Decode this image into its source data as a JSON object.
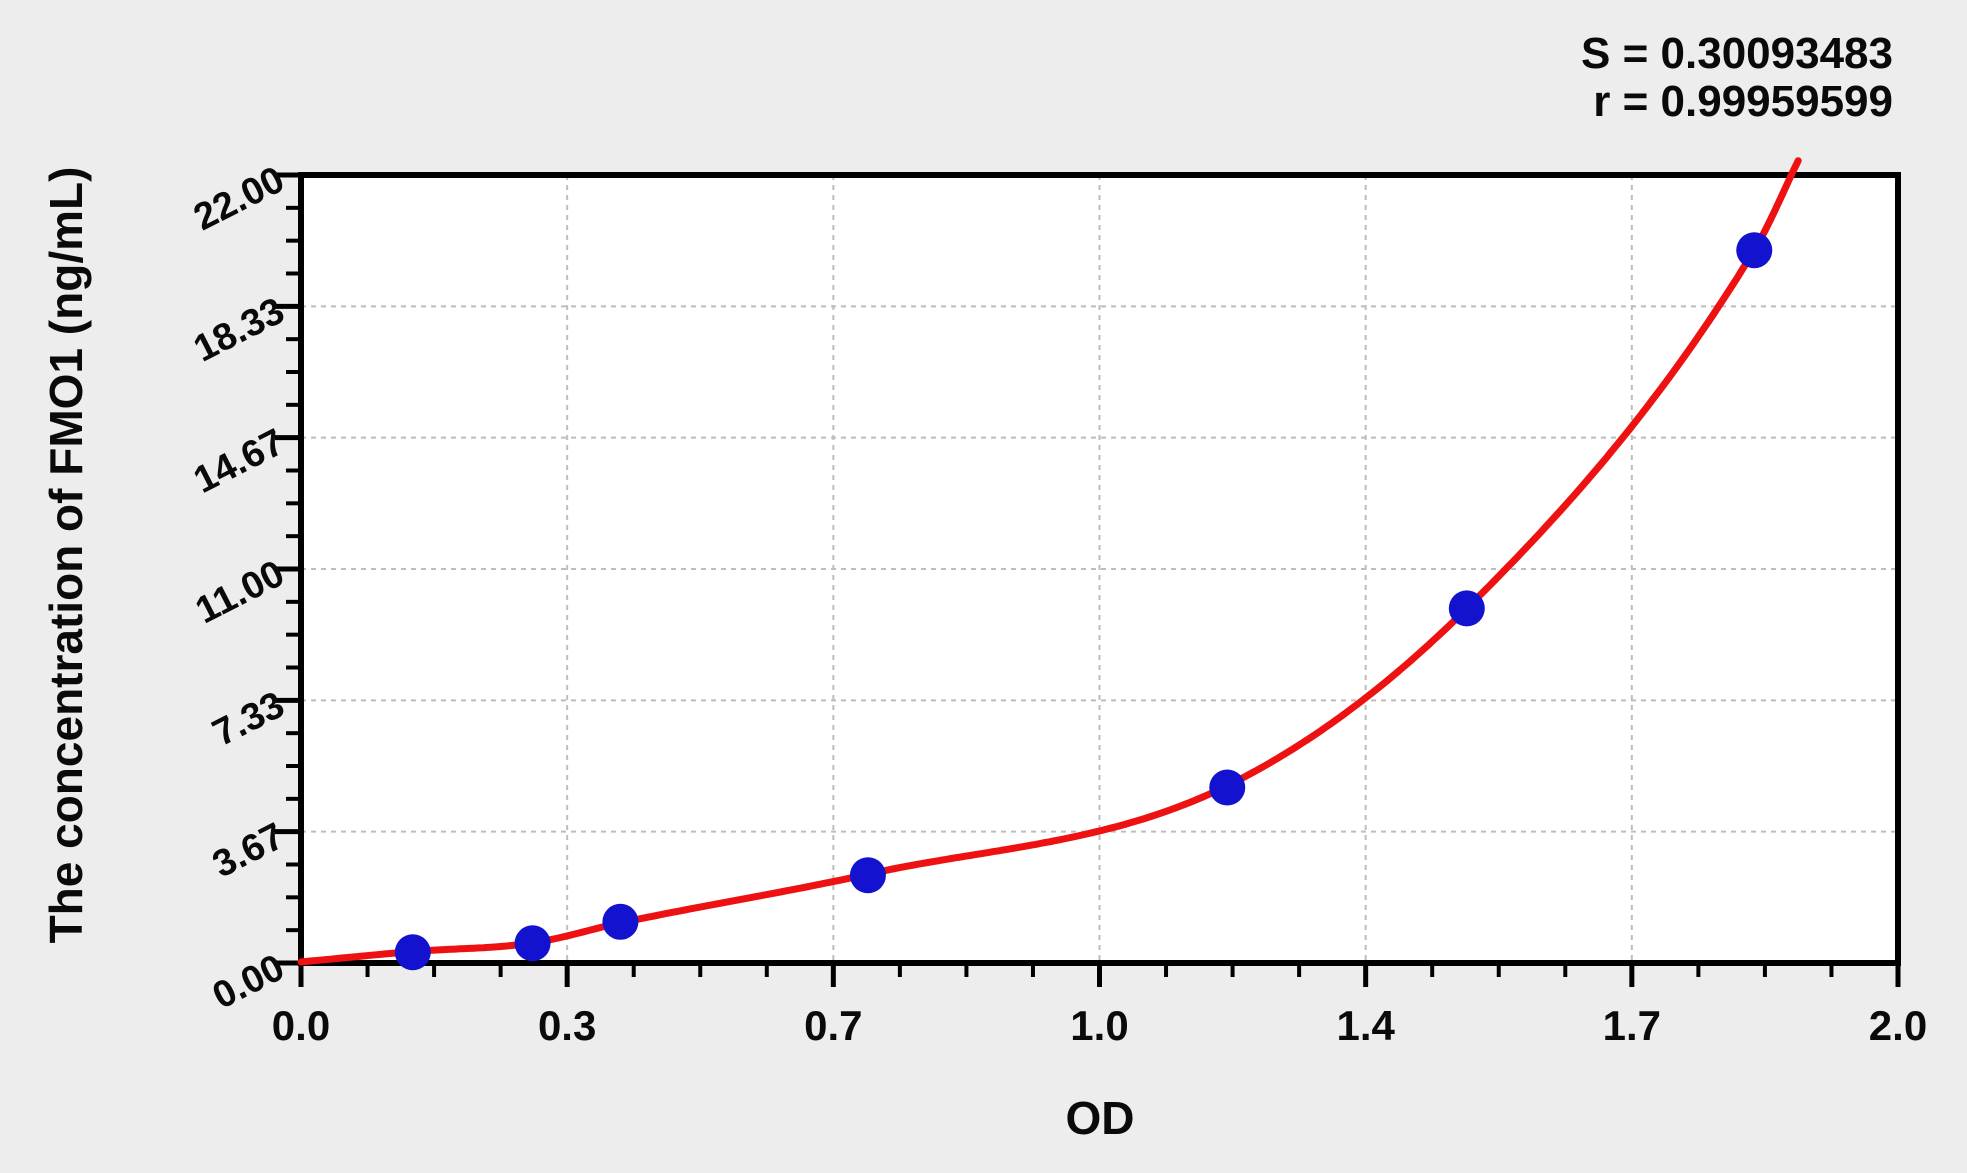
{
  "figure": {
    "background": "#ededed",
    "plot_background": "#ffffff",
    "frame_color": "#000000",
    "grid_color": "#bdbdbd",
    "tick_color": "#000000",
    "label_color": "#0a0a0a"
  },
  "stats": {
    "s_line": "S = 0.30093483",
    "r_line": "r = 0.99959599"
  },
  "chart_data": {
    "type": "scatter",
    "title": "",
    "xlabel": "OD",
    "ylabel": "The concentration of FMO1 (ng/mL)",
    "xlim": [
      0.0,
      2.0
    ],
    "ylim": [
      0.0,
      22.0
    ],
    "x_major_ticks": [
      0,
      0.33333,
      0.66667,
      1.0,
      1.33333,
      1.66667,
      2.0
    ],
    "x_tick_labels": [
      "0.0",
      "0.3",
      "0.7",
      "1.0",
      "1.4",
      "1.7",
      "2.0"
    ],
    "y_major_ticks": [
      0,
      3.66667,
      7.33333,
      11.0,
      14.66667,
      18.33333,
      22.0
    ],
    "y_tick_labels": [
      "0.00",
      "3.67",
      "7.33",
      "11.00",
      "14.67",
      "18.33",
      "22.00"
    ],
    "minor_divisions": 4,
    "grid": "dashed-at-major-ticks",
    "legend_position": "none",
    "series": [
      {
        "name": "standard-points",
        "marker": "circle",
        "color": "#1313cf",
        "points": [
          {
            "od": 0.14,
            "conc": 0.3
          },
          {
            "od": 0.29,
            "conc": 0.55
          },
          {
            "od": 0.4,
            "conc": 1.15
          },
          {
            "od": 0.71,
            "conc": 2.45
          },
          {
            "od": 1.16,
            "conc": 4.9
          },
          {
            "od": 1.46,
            "conc": 9.9
          },
          {
            "od": 1.82,
            "conc": 19.9
          }
        ]
      },
      {
        "name": "fit-curve",
        "style": "line",
        "color": "#ee1111",
        "anchors": [
          [
            0.0,
            0.03
          ],
          [
            0.14,
            0.32
          ],
          [
            0.29,
            0.56
          ],
          [
            0.4,
            1.12
          ],
          [
            0.71,
            2.48
          ],
          [
            1.16,
            4.95
          ],
          [
            1.46,
            9.9
          ],
          [
            1.82,
            19.9
          ],
          [
            1.875,
            22.4
          ]
        ]
      }
    ],
    "fit_stats": {
      "S": "0.30093483",
      "r": "0.99959599"
    }
  }
}
